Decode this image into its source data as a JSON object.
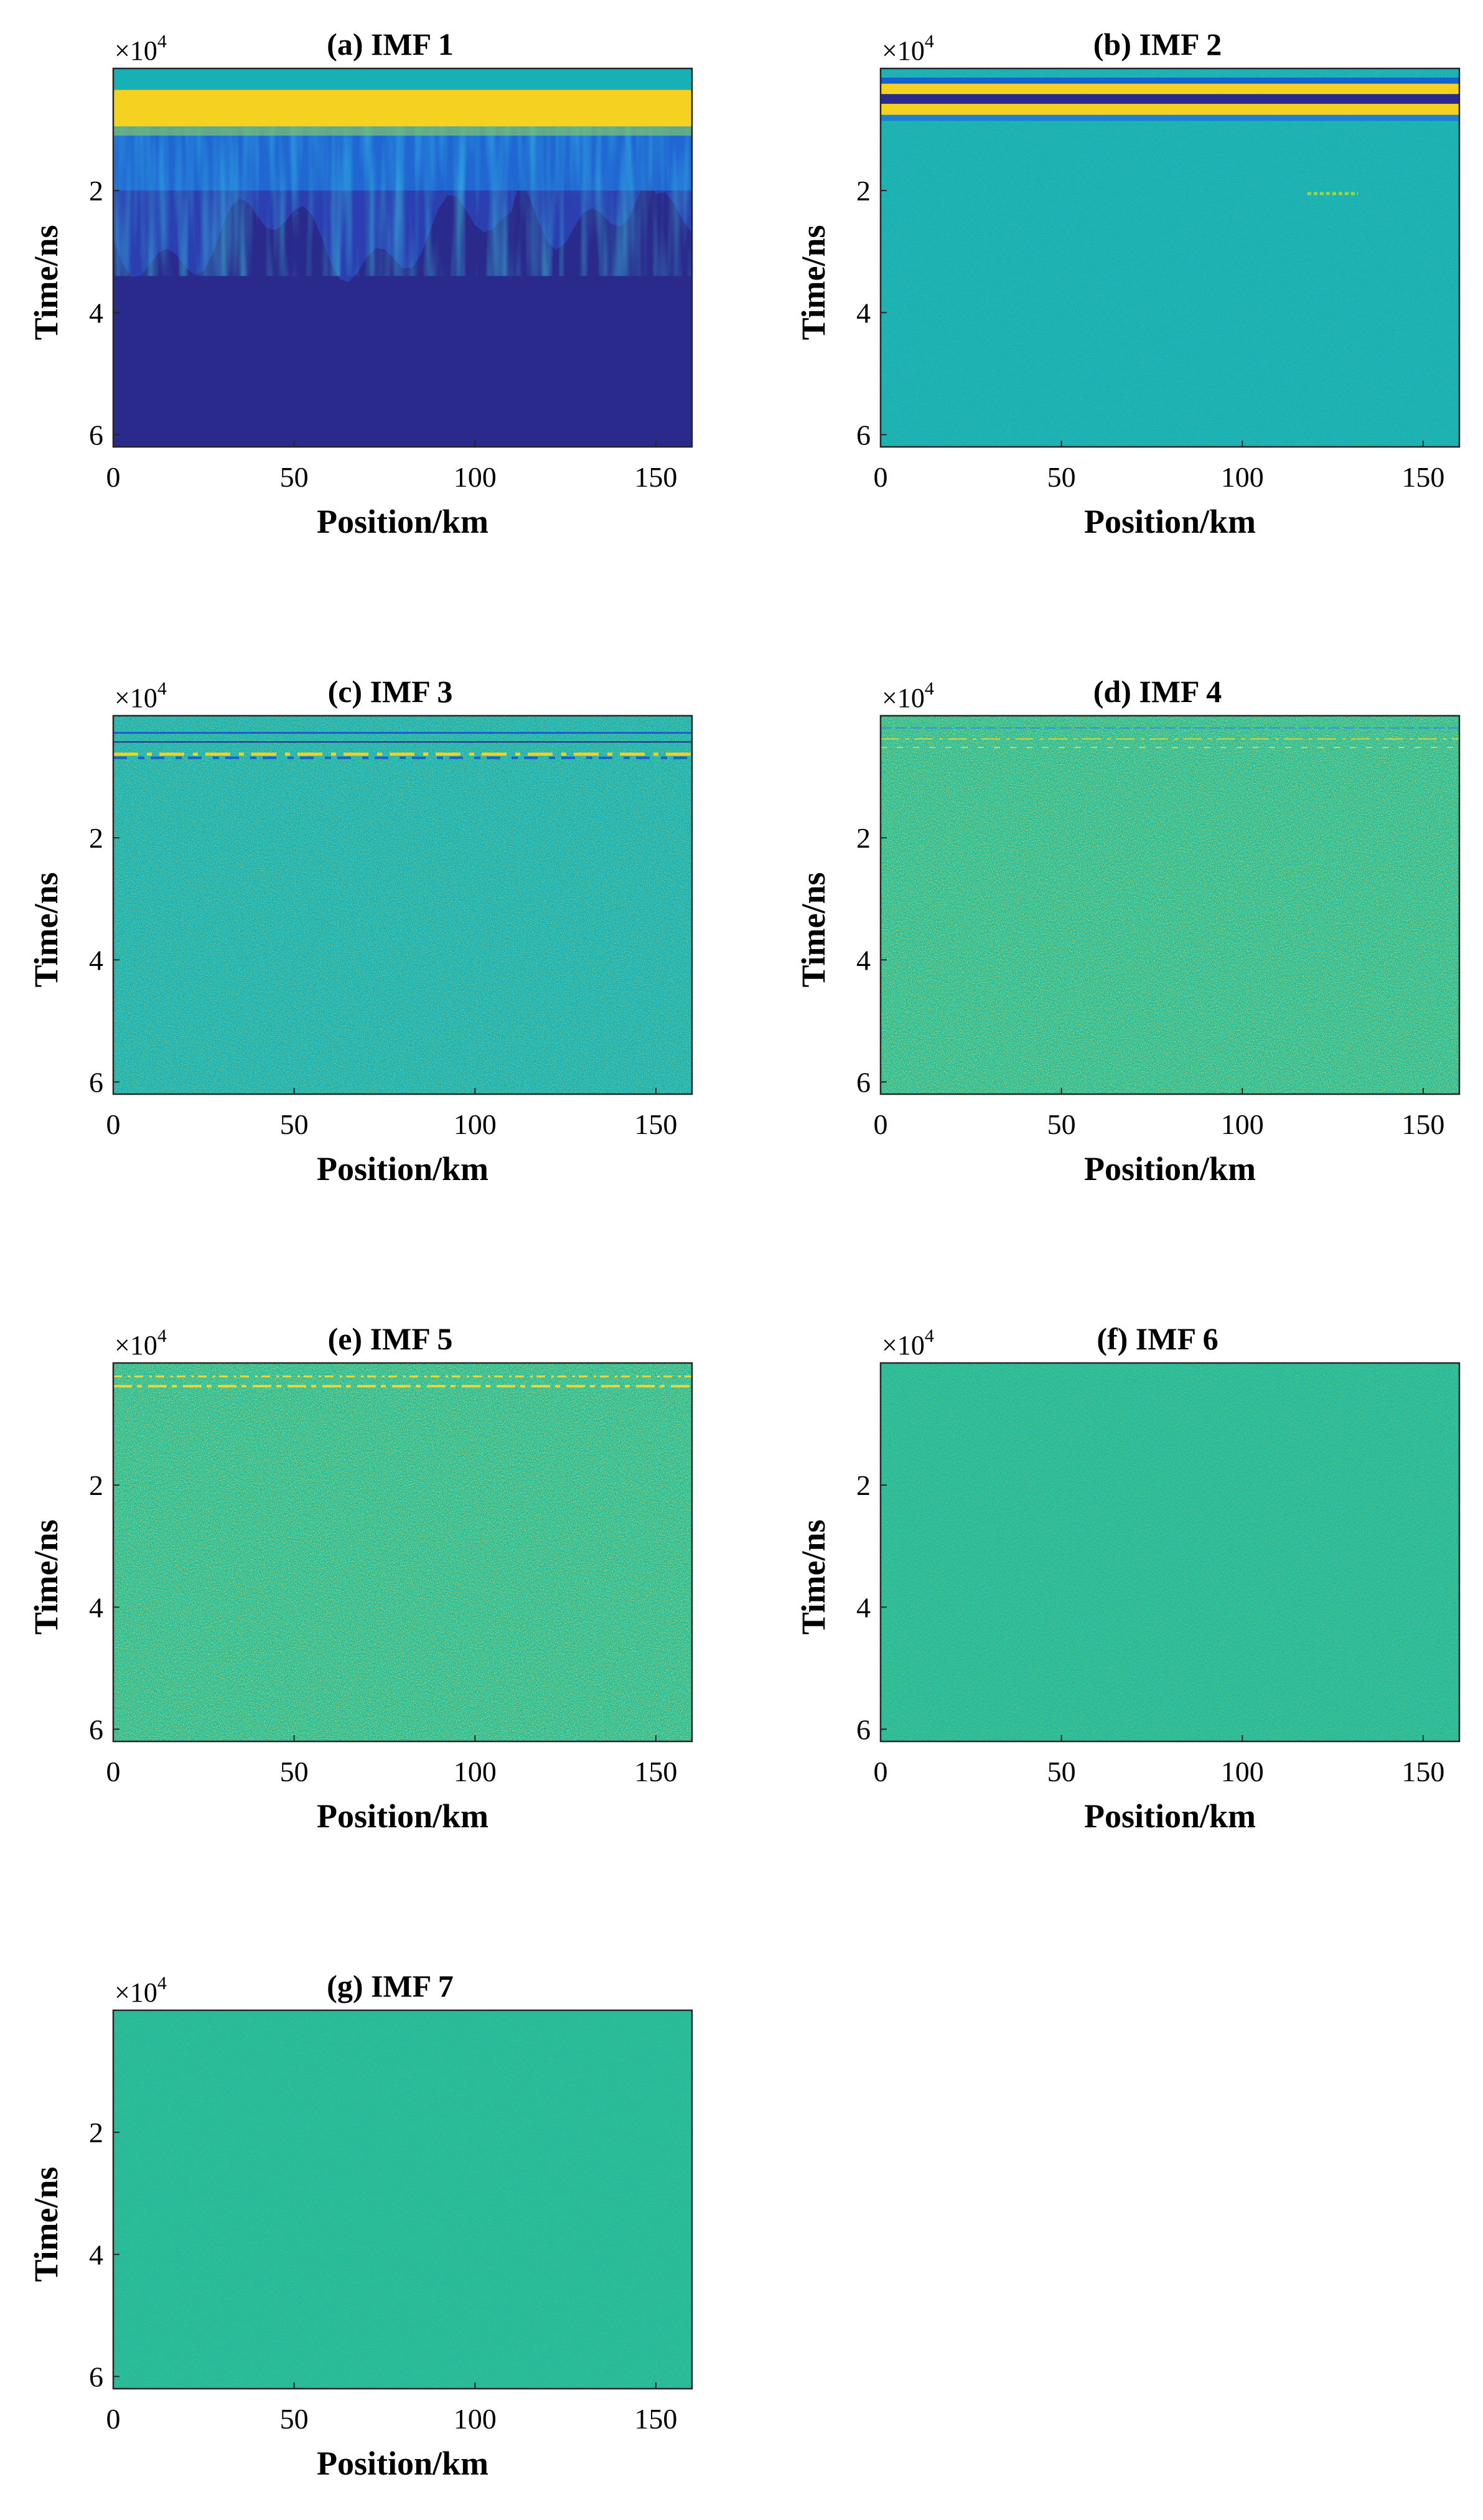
{
  "figure": {
    "panel_order": [
      "a",
      "b",
      "c",
      "d",
      "e",
      "f",
      "g"
    ]
  },
  "colormap": {
    "name": "parula",
    "dark": "#2a2a8c",
    "deep_blue": "#2b3fb0",
    "blue": "#1f6fd8",
    "teal": "#16b0b5",
    "green_teal": "#23b99a",
    "yellow": "#f4d21f"
  },
  "chart_data": [
    {
      "id": "a",
      "type": "heatmap",
      "title": "(a) IMF 1",
      "xlabel": "Position/km",
      "ylabel": "Time/ns",
      "xlim": [
        0,
        160
      ],
      "ylim": [
        0,
        62000
      ],
      "y_reversed": true,
      "xticks": [
        0,
        50,
        100,
        150
      ],
      "xtick_labels": [
        "0",
        "50",
        "100",
        "150"
      ],
      "yticks": [
        20000,
        40000,
        60000
      ],
      "ytick_labels": [
        "2",
        "4",
        "6"
      ],
      "y_exponent": "×10",
      "y_exponent_power": "4",
      "background": "dark",
      "pattern": "Bright yellow band near the top at about 4000–9000 ns, blue transition zone down to about 20000–36000 ns, dark blue below"
    },
    {
      "id": "b",
      "type": "heatmap",
      "title": "(b) IMF 2",
      "xlabel": "Position/km",
      "ylabel": "Time/ns",
      "xlim": [
        0,
        160
      ],
      "ylim": [
        0,
        62000
      ],
      "y_reversed": true,
      "xticks": [
        0,
        50,
        100,
        150
      ],
      "xtick_labels": [
        "0",
        "50",
        "100",
        "150"
      ],
      "yticks": [
        20000,
        40000,
        60000
      ],
      "ytick_labels": [
        "2",
        "4",
        "6"
      ],
      "y_exponent": "×10",
      "y_exponent_power": "4",
      "background": "teal",
      "pattern": "Alternating yellow and dark blue horizontal bands at about 2000–8000 ns, weak reflection near 125 km at about 20000 ns, uniform teal elsewhere"
    },
    {
      "id": "c",
      "type": "heatmap",
      "title": "(c) IMF 3",
      "xlabel": "Position/km",
      "ylabel": "Time/ns",
      "xlim": [
        0,
        160
      ],
      "ylim": [
        0,
        62000
      ],
      "y_reversed": true,
      "xticks": [
        0,
        50,
        100,
        150
      ],
      "xtick_labels": [
        "0",
        "50",
        "100",
        "150"
      ],
      "yticks": [
        20000,
        40000,
        60000
      ],
      "ytick_labels": [
        "2",
        "4",
        "6"
      ],
      "y_exponent": "×10",
      "y_exponent_power": "4",
      "background": "teal",
      "pattern": "Thin dashed yellow and blue lines at about 2000–6000 ns, fine noise texture elsewhere"
    },
    {
      "id": "d",
      "type": "heatmap",
      "title": "(d) IMF 4",
      "xlabel": "Position/km",
      "ylabel": "Time/ns",
      "xlim": [
        0,
        160
      ],
      "ylim": [
        0,
        62000
      ],
      "y_reversed": true,
      "xticks": [
        0,
        50,
        100,
        150
      ],
      "xtick_labels": [
        "0",
        "50",
        "100",
        "150"
      ],
      "yticks": [
        20000,
        40000,
        60000
      ],
      "ytick_labels": [
        "2",
        "4",
        "6"
      ],
      "y_exponent": "×10",
      "y_exponent_power": "4",
      "background": "green_teal",
      "pattern": "Faint thin lines near the top, strong speckled noise throughout"
    },
    {
      "id": "e",
      "type": "heatmap",
      "title": "(e) IMF 5",
      "xlabel": "Position/km",
      "ylabel": "Time/ns",
      "xlim": [
        0,
        160
      ],
      "ylim": [
        0,
        62000
      ],
      "y_reversed": true,
      "xticks": [
        0,
        50,
        100,
        150
      ],
      "xtick_labels": [
        "0",
        "50",
        "100",
        "150"
      ],
      "yticks": [
        20000,
        40000,
        60000
      ],
      "ytick_labels": [
        "2",
        "4",
        "6"
      ],
      "y_exponent": "×10",
      "y_exponent_power": "4",
      "background": "green_teal",
      "pattern": "Thin yellow dashed lines at about 2000–4000 ns, speckled noise throughout"
    },
    {
      "id": "f",
      "type": "heatmap",
      "title": "(f) IMF 6",
      "xlabel": "Position/km",
      "ylabel": "Time/ns",
      "xlim": [
        0,
        160
      ],
      "ylim": [
        0,
        62000
      ],
      "y_reversed": true,
      "xticks": [
        0,
        50,
        100,
        150
      ],
      "xtick_labels": [
        "0",
        "50",
        "100",
        "150"
      ],
      "yticks": [
        20000,
        40000,
        60000
      ],
      "ytick_labels": [
        "2",
        "4",
        "6"
      ],
      "y_exponent": "×10",
      "y_exponent_power": "4",
      "background": "green_teal",
      "pattern": "Nearly uniform with very faint fine texture"
    },
    {
      "id": "g",
      "type": "heatmap",
      "title": "(g) IMF 7",
      "xlabel": "Position/km",
      "ylabel": "Time/ns",
      "xlim": [
        0,
        160
      ],
      "ylim": [
        0,
        62000
      ],
      "y_reversed": true,
      "xticks": [
        0,
        50,
        100,
        150
      ],
      "xtick_labels": [
        "0",
        "50",
        "100",
        "150"
      ],
      "yticks": [
        20000,
        40000,
        60000
      ],
      "ytick_labels": [
        "2",
        "4",
        "6"
      ],
      "y_exponent": "×10",
      "y_exponent_power": "4",
      "background": "green_teal",
      "pattern": "Uniform field"
    }
  ]
}
